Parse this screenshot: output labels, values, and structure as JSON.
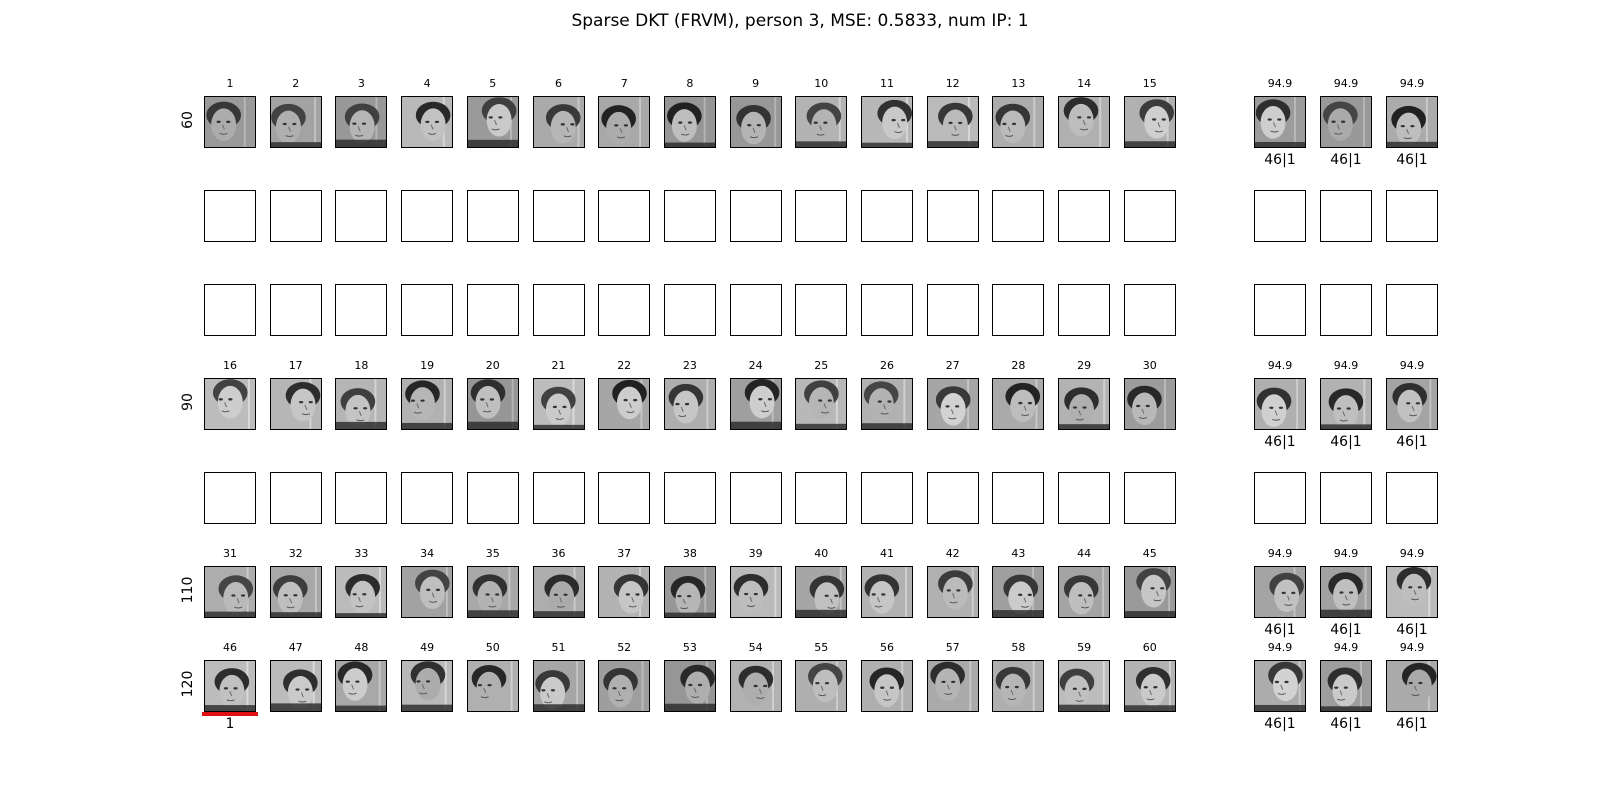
{
  "title": "Sparse DKT (FRVM), person 3, MSE: 0.5833, num IP: 1",
  "row_labels": [
    "60",
    "90",
    "110",
    "120"
  ],
  "rows": [
    {
      "label": "60",
      "kind": "faces",
      "indices": [
        "1",
        "2",
        "3",
        "4",
        "5",
        "6",
        "7",
        "8",
        "9",
        "10",
        "11",
        "12",
        "13",
        "14",
        "15"
      ],
      "side_scores": [
        "94.9",
        "94.9",
        "94.9"
      ],
      "side_preds": [
        "46|1",
        "46|1",
        "46|1"
      ]
    },
    {
      "kind": "empty"
    },
    {
      "kind": "empty"
    },
    {
      "label": "90",
      "kind": "faces",
      "indices": [
        "16",
        "17",
        "18",
        "19",
        "20",
        "21",
        "22",
        "23",
        "24",
        "25",
        "26",
        "27",
        "28",
        "29",
        "30"
      ],
      "side_scores": [
        "94.9",
        "94.9",
        "94.9"
      ],
      "side_preds": [
        "46|1",
        "46|1",
        "46|1"
      ]
    },
    {
      "kind": "empty"
    },
    {
      "label": "110",
      "kind": "faces",
      "indices": [
        "31",
        "32",
        "33",
        "34",
        "35",
        "36",
        "37",
        "38",
        "39",
        "40",
        "41",
        "42",
        "43",
        "44",
        "45"
      ],
      "side_scores": [
        "94.9",
        "94.9",
        "94.9"
      ],
      "side_preds": [
        "46|1",
        "46|1",
        "46|1"
      ]
    },
    {
      "label": "120",
      "kind": "faces",
      "indices": [
        "46",
        "47",
        "48",
        "49",
        "50",
        "51",
        "52",
        "53",
        "54",
        "55",
        "56",
        "57",
        "58",
        "59",
        "60"
      ],
      "side_scores": [
        "94.9",
        "94.9",
        "94.9"
      ],
      "side_preds": [
        "46|1",
        "46|1",
        "46|1"
      ]
    }
  ],
  "selected": {
    "index": "46",
    "label": "1",
    "marker_color": "#e01010"
  }
}
